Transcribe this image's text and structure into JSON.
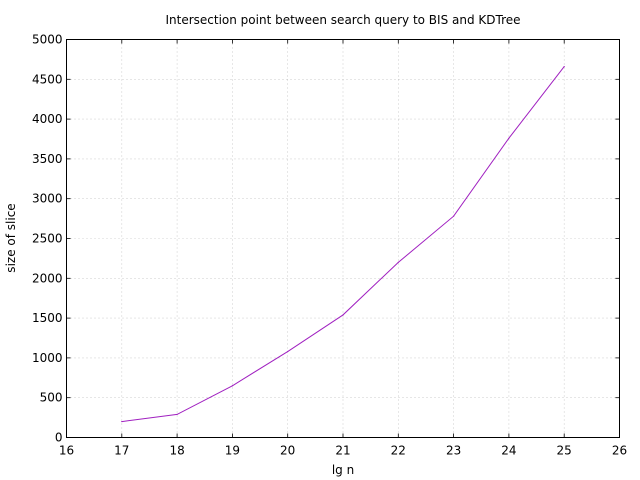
{
  "chart_data": {
    "type": "line",
    "title": "Intersection point between search query to BIS and KDTree",
    "xlabel": "lg n",
    "ylabel": "size of slice",
    "xlim": [
      16,
      26
    ],
    "ylim": [
      0,
      5000
    ],
    "xticks": [
      16,
      17,
      18,
      19,
      20,
      21,
      22,
      23,
      24,
      25,
      26
    ],
    "yticks": [
      0,
      500,
      1000,
      1500,
      2000,
      2500,
      3000,
      3500,
      4000,
      4500,
      5000
    ],
    "grid": true,
    "series": [
      {
        "color": "#a020c0",
        "x": [
          17,
          18,
          19,
          20,
          21,
          22,
          23,
          24,
          25
        ],
        "y": [
          200,
          290,
          650,
          1080,
          1540,
          2200,
          2780,
          3760,
          4660
        ]
      }
    ]
  }
}
